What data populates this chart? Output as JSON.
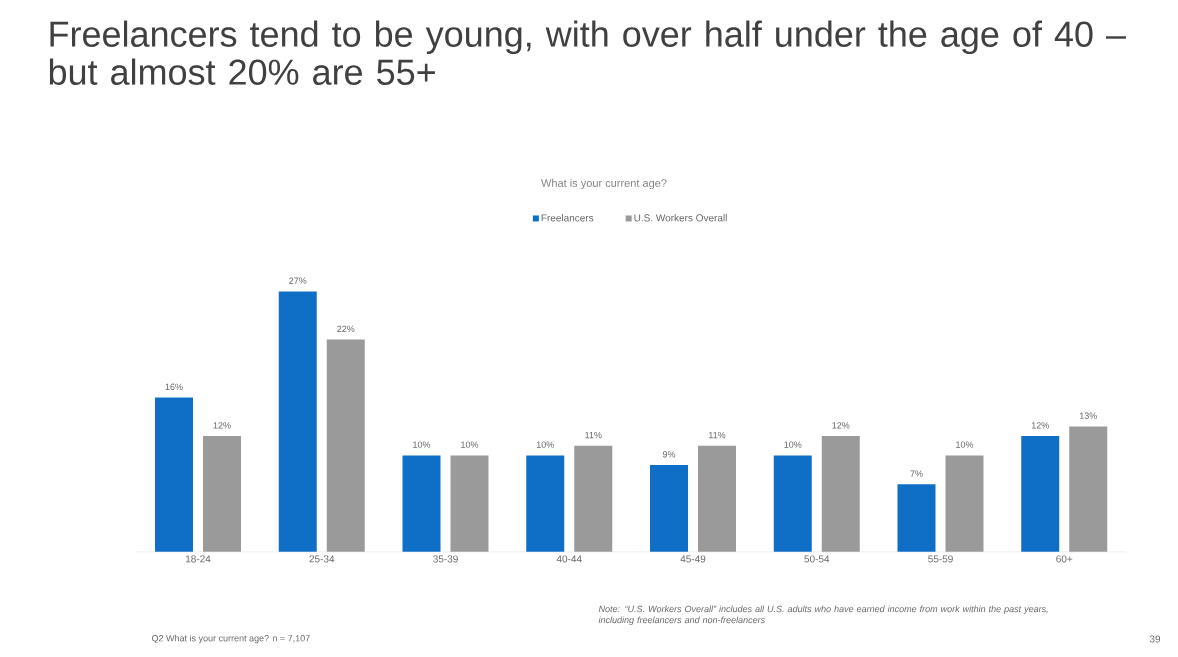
{
  "chart_data": {
    "type": "bar",
    "title": "Freelancers tend to be young, with over half under the age of 40 – but almost 20% are 55+",
    "subtitle": "What is your current age?",
    "categories": [
      "18-24",
      "25-34",
      "35-39",
      "40-44",
      "45-49",
      "50-54",
      "55-59",
      "60+"
    ],
    "series": [
      {
        "name": "Freelancers",
        "color": "#0f6fc6",
        "values": [
          16,
          27,
          10,
          10,
          9,
          10,
          7,
          12
        ],
        "value_labels": [
          "16%",
          "27%",
          "10%",
          "10%",
          "9%",
          "10%",
          "7%",
          "12%"
        ]
      },
      {
        "name": "U.S. Workers Overall",
        "color": "#9a9a9a",
        "values": [
          12,
          22,
          10,
          11,
          11,
          12,
          10,
          13
        ],
        "value_labels": [
          "12%",
          "22%",
          "10%",
          "11%",
          "11%",
          "12%",
          "10%",
          "13%"
        ]
      }
    ],
    "legend": "top",
    "annotations": [
      "Note: “U.S. Workers Overall” includes all U.S. adults who have earned income from work within the past years, including freelancers and non-freelancers",
      "Q2 What is your current age? n = 7,107",
      "39"
    ]
  }
}
